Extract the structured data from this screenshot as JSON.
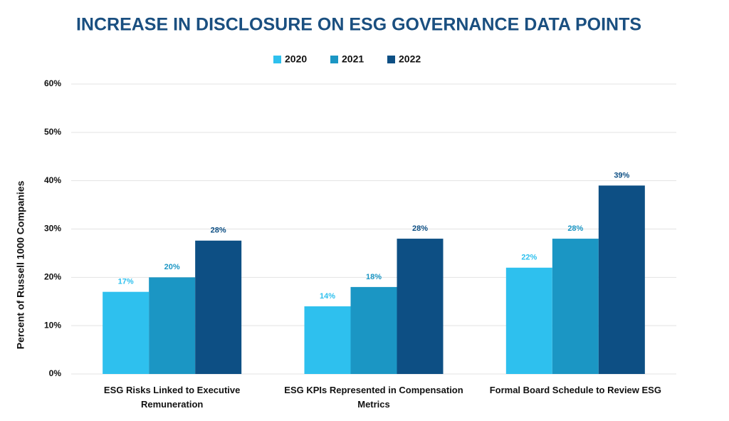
{
  "chart_data": {
    "type": "bar",
    "title": "INCREASE IN DISCLOSURE ON ESG GOVERNANCE DATA POINTS",
    "y_label": "Percent of Russell 1000 Companies",
    "categories": [
      "ESG Risks Linked to Executive Remuneration",
      "ESG KPIs Represented in Compensation Metrics",
      "Formal Board Schedule to Review ESG"
    ],
    "series": [
      {
        "name": "2020",
        "color": "#2ec0ee",
        "values": [
          17,
          14,
          22
        ],
        "value_labels": [
          "17%",
          "14%",
          "22%"
        ]
      },
      {
        "name": "2021",
        "color": "#1b96c4",
        "values": [
          20,
          18,
          28
        ],
        "value_labels": [
          "20%",
          "18%",
          "28%"
        ]
      },
      {
        "name": "2022",
        "color": "#0d4f84",
        "values": [
          27.6,
          28,
          39
        ],
        "value_labels": [
          "28%",
          "28%",
          "39%"
        ]
      }
    ],
    "ylim": [
      0,
      60
    ],
    "yticks": [
      {
        "value": 0,
        "label": "0%"
      },
      {
        "value": 10,
        "label": "10%"
      },
      {
        "value": 20,
        "label": "20%"
      },
      {
        "value": 30,
        "label": "30%"
      },
      {
        "value": 40,
        "label": "40%"
      },
      {
        "value": 50,
        "label": "50%"
      },
      {
        "value": 60,
        "label": "60%"
      }
    ],
    "grid": true,
    "legend": "top"
  }
}
